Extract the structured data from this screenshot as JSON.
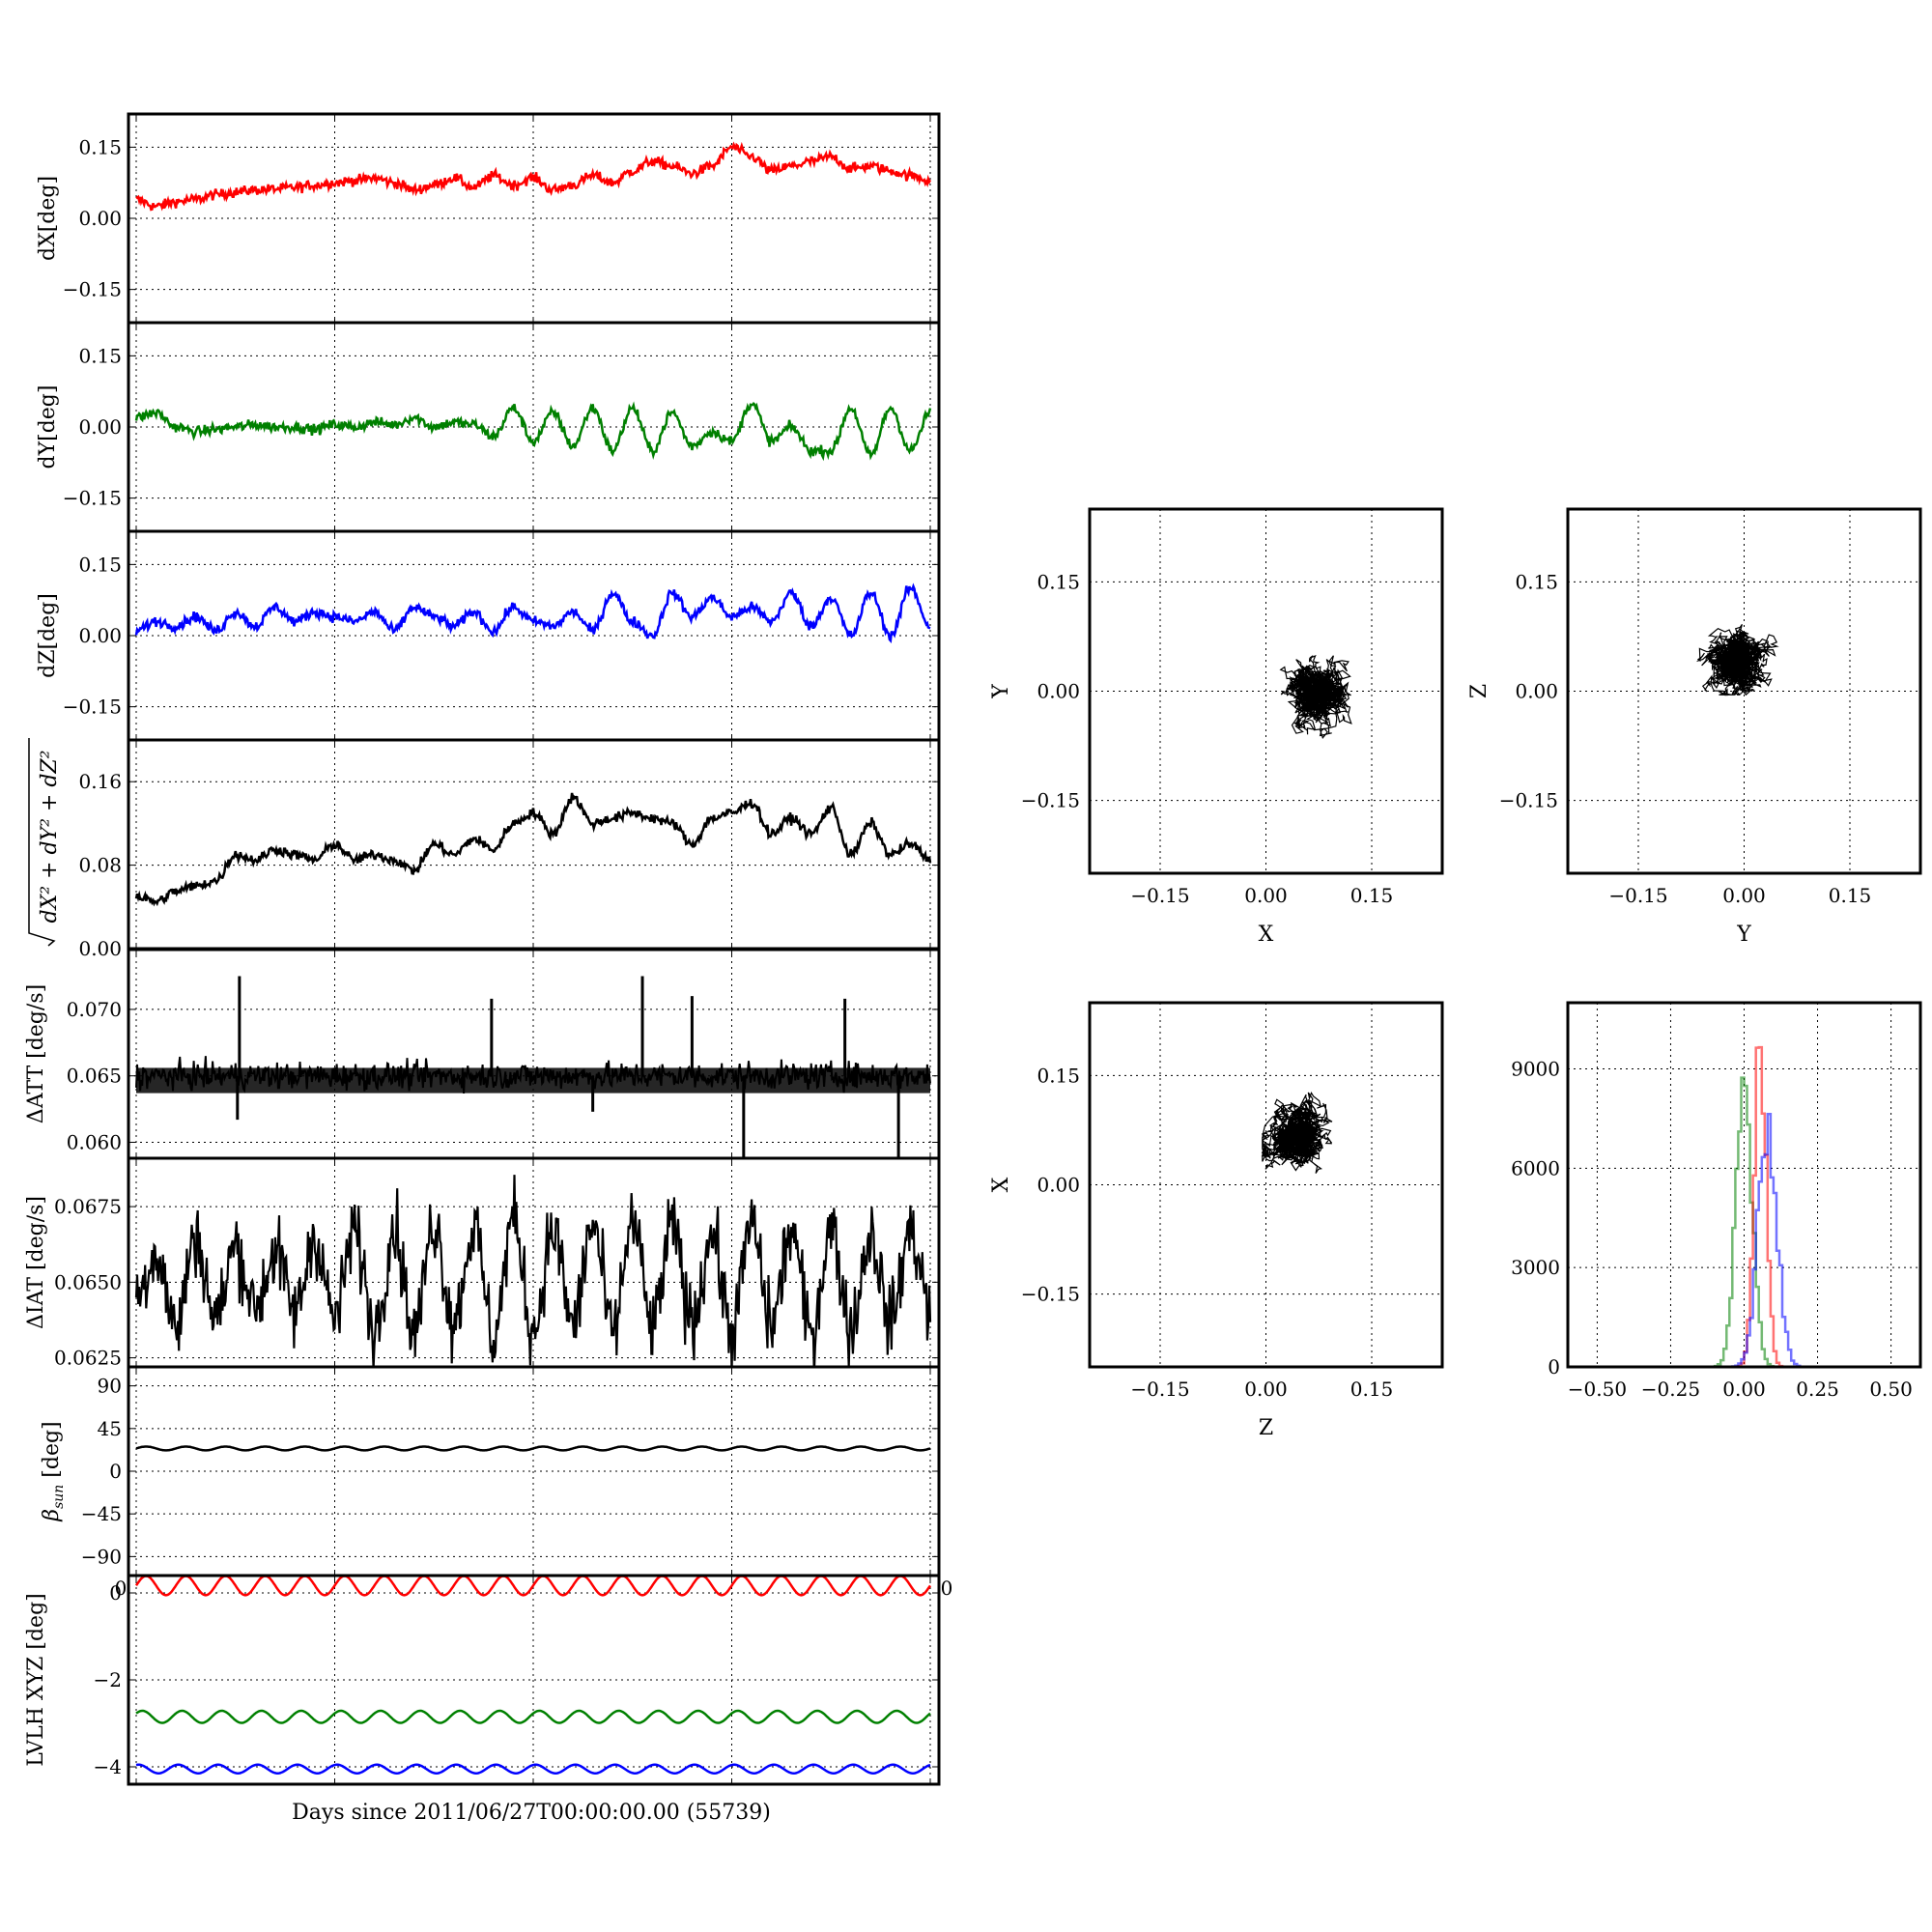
{
  "figure": {
    "xlabel": "Days since 2011/06/27T00:00:00.00 (55739)",
    "colors": {
      "red": "#ff0000",
      "green": "#008000",
      "blue": "#0000ff",
      "black": "#000000"
    }
  },
  "chart_data": [
    {
      "id": "dx",
      "type": "line",
      "ylabel": "dX[deg]",
      "ylim": [
        -0.22,
        0.22
      ],
      "yticks": [
        "0.15",
        "0.00",
        "-0.15"
      ],
      "ytick_values": [
        0.15,
        0.0,
        -0.15
      ],
      "x": [
        0,
        1,
        2,
        3,
        4,
        5,
        6,
        7,
        8,
        9,
        10,
        11,
        12,
        13,
        14,
        15,
        16,
        17,
        18,
        19,
        20,
        21,
        22,
        23,
        24,
        25,
        26,
        27,
        28,
        29,
        30,
        31,
        32,
        33,
        34,
        35,
        36,
        37,
        38,
        39,
        40
      ],
      "series": [
        {
          "color": "#ff0000",
          "values": [
            0.04,
            0.025,
            0.035,
            0.04,
            0.05,
            0.055,
            0.06,
            0.062,
            0.065,
            0.07,
            0.075,
            0.08,
            0.085,
            0.075,
            0.06,
            0.07,
            0.085,
            0.065,
            0.09,
            0.07,
            0.085,
            0.06,
            0.07,
            0.09,
            0.075,
            0.1,
            0.12,
            0.11,
            0.095,
            0.11,
            0.15,
            0.13,
            0.1,
            0.11,
            0.12,
            0.13,
            0.105,
            0.11,
            0.1,
            0.09,
            0.08
          ]
        }
      ],
      "grid": true
    },
    {
      "id": "dy",
      "type": "line",
      "ylabel": "dY[deg]",
      "ylim": [
        -0.22,
        0.22
      ],
      "yticks": [
        "0.15",
        "0.00",
        "-0.15"
      ],
      "ytick_values": [
        0.15,
        0.0,
        -0.15
      ],
      "x": [
        0,
        1,
        2,
        3,
        4,
        5,
        6,
        7,
        8,
        9,
        10,
        11,
        12,
        13,
        14,
        15,
        16,
        17,
        18,
        19,
        20,
        21,
        22,
        23,
        24,
        25,
        26,
        27,
        28,
        29,
        30,
        31,
        32,
        33,
        34,
        35,
        36,
        37,
        38,
        39,
        40
      ],
      "series": [
        {
          "color": "#008000",
          "values": [
            0.02,
            0.03,
            0.0,
            -0.01,
            -0.005,
            0.0,
            0.005,
            0.0,
            0.0,
            -0.005,
            0.005,
            0.0,
            0.01,
            0.005,
            0.02,
            0.0,
            0.01,
            0.005,
            -0.02,
            0.04,
            -0.03,
            0.03,
            -0.04,
            0.04,
            -0.05,
            0.04,
            -0.05,
            0.03,
            -0.04,
            -0.01,
            -0.03,
            0.05,
            -0.03,
            0.0,
            -0.05,
            -0.05,
            0.04,
            -0.06,
            0.04,
            -0.05,
            0.03
          ]
        }
      ],
      "grid": true
    },
    {
      "id": "dz",
      "type": "line",
      "ylabel": "dZ[deg]",
      "ylim": [
        -0.22,
        0.22
      ],
      "yticks": [
        "0.15",
        "0.00",
        "-0.15"
      ],
      "ytick_values": [
        0.15,
        0.0,
        -0.15
      ],
      "x": [
        0,
        1,
        2,
        3,
        4,
        5,
        6,
        7,
        8,
        9,
        10,
        11,
        12,
        13,
        14,
        15,
        16,
        17,
        18,
        19,
        20,
        21,
        22,
        23,
        24,
        25,
        26,
        27,
        28,
        29,
        30,
        31,
        32,
        33,
        34,
        35,
        36,
        37,
        38,
        39,
        40
      ],
      "series": [
        {
          "color": "#0000ff",
          "values": [
            0.01,
            0.03,
            0.02,
            0.04,
            0.01,
            0.05,
            0.02,
            0.06,
            0.03,
            0.05,
            0.04,
            0.03,
            0.05,
            0.01,
            0.06,
            0.04,
            0.02,
            0.05,
            0.01,
            0.06,
            0.03,
            0.02,
            0.05,
            0.01,
            0.09,
            0.03,
            0.0,
            0.09,
            0.04,
            0.08,
            0.04,
            0.06,
            0.03,
            0.09,
            0.02,
            0.08,
            0.0,
            0.09,
            0.0,
            0.1,
            0.02
          ]
        }
      ],
      "grid": true
    },
    {
      "id": "drms",
      "type": "line",
      "ylabel": "√dX²+dY²+dZ²",
      "ylim": [
        0.0,
        0.2
      ],
      "yticks": [
        "0.16",
        "0.08",
        "0.00"
      ],
      "ytick_values": [
        0.16,
        0.08,
        0.0
      ],
      "x": [
        0,
        1,
        2,
        3,
        4,
        5,
        6,
        7,
        8,
        9,
        10,
        11,
        12,
        13,
        14,
        15,
        16,
        17,
        18,
        19,
        20,
        21,
        22,
        23,
        24,
        25,
        26,
        27,
        28,
        29,
        30,
        31,
        32,
        33,
        34,
        35,
        36,
        37,
        38,
        39,
        40
      ],
      "series": [
        {
          "color": "#000000",
          "values": [
            0.05,
            0.045,
            0.055,
            0.06,
            0.065,
            0.09,
            0.085,
            0.095,
            0.09,
            0.085,
            0.1,
            0.085,
            0.09,
            0.085,
            0.075,
            0.1,
            0.09,
            0.105,
            0.095,
            0.12,
            0.13,
            0.11,
            0.145,
            0.12,
            0.125,
            0.13,
            0.125,
            0.12,
            0.1,
            0.125,
            0.13,
            0.14,
            0.11,
            0.125,
            0.11,
            0.135,
            0.09,
            0.12,
            0.09,
            0.1,
            0.085
          ]
        }
      ],
      "grid": true
    },
    {
      "id": "datt",
      "type": "line",
      "ylabel": "ΔATT [deg/s]",
      "ylim": [
        0.0588,
        0.0745
      ],
      "yticks": [
        "0.070",
        "0.065",
        "0.060"
      ],
      "ytick_values": [
        0.07,
        0.065,
        0.06
      ],
      "baseline": 0.065,
      "band": [
        0.0637,
        0.0656
      ],
      "spikes": [
        {
          "x": 5.2,
          "value": 0.0725
        },
        {
          "x": 17.9,
          "value": 0.0708
        },
        {
          "x": 25.5,
          "value": 0.0725
        },
        {
          "x": 28.0,
          "value": 0.071
        },
        {
          "x": 35.7,
          "value": 0.0708
        },
        {
          "x": 5.1,
          "value": 0.0617
        },
        {
          "x": 23.0,
          "value": 0.0623
        },
        {
          "x": 30.6,
          "value": 0.0588
        },
        {
          "x": 38.4,
          "value": 0.0588
        }
      ],
      "series": [
        {
          "color": "#000000"
        }
      ],
      "grid": true
    },
    {
      "id": "diat",
      "type": "line",
      "ylabel": "ΔIAT [deg/s]",
      "ylim": [
        0.0622,
        0.0691
      ],
      "yticks": [
        "0.0675",
        "0.0650",
        "0.0625"
      ],
      "ytick_values": [
        0.0675,
        0.065,
        0.0625
      ],
      "x": [
        0,
        1,
        2,
        3,
        4,
        5,
        6,
        7,
        8,
        9,
        10,
        11,
        12,
        13,
        14,
        15,
        16,
        17,
        18,
        19,
        20,
        21,
        22,
        23,
        24,
        25,
        26,
        27,
        28,
        29,
        30,
        31,
        32,
        33,
        34,
        35,
        36,
        37,
        38,
        39,
        40
      ],
      "series": [
        {
          "color": "#000000",
          "values": [
            0.0645,
            0.066,
            0.0635,
            0.0665,
            0.0638,
            0.0662,
            0.0642,
            0.066,
            0.064,
            0.0665,
            0.0638,
            0.0667,
            0.0635,
            0.0668,
            0.0633,
            0.067,
            0.0637,
            0.0668,
            0.0632,
            0.0671,
            0.0634,
            0.0667,
            0.0636,
            0.0669,
            0.0633,
            0.067,
            0.0635,
            0.0668,
            0.0637,
            0.0666,
            0.0634,
            0.0669,
            0.0636,
            0.0667,
            0.0633,
            0.0668,
            0.0635,
            0.0666,
            0.0637,
            0.0667,
            0.0642
          ]
        }
      ],
      "grid": true
    },
    {
      "id": "beta",
      "type": "line",
      "ylabel": "β_sun [deg]",
      "ylabel_main": "β",
      "ylabel_sub": "sun",
      "ylabel_unit": "[deg]",
      "ylim": [
        -110,
        110
      ],
      "yticks": [
        "90",
        "45",
        "0",
        "-45",
        "-90"
      ],
      "ytick_values": [
        90,
        45,
        0,
        -45,
        -90
      ],
      "mean": 24,
      "amplitude": 2,
      "periods": 20,
      "series": [
        {
          "color": "#000000"
        }
      ],
      "grid": true
    },
    {
      "id": "lvlh",
      "type": "line",
      "ylabel": "LVLH XYZ [deg]",
      "ylim": [
        -4.4,
        0.4
      ],
      "yticks": [
        "0",
        "-2",
        "-4"
      ],
      "ytick_values": [
        0,
        -2,
        -4
      ],
      "xticks_bottom": [
        "0",
        "0"
      ],
      "periods": 20,
      "series": [
        {
          "color": "#ff0000",
          "mean": 0.17,
          "amplitude": 0.22
        },
        {
          "color": "#008000",
          "mean": -2.85,
          "amplitude": 0.14
        },
        {
          "color": "#0000ff",
          "mean": -4.05,
          "amplitude": 0.1
        }
      ],
      "grid": true
    },
    {
      "id": "scatter_xy",
      "type": "scatter",
      "xlabel": "X",
      "ylabel": "Y",
      "xlim": [
        -0.25,
        0.25
      ],
      "ylim": [
        -0.25,
        0.25
      ],
      "xticks": [
        "-0.15",
        "0.00",
        "0.15"
      ],
      "yticks": [
        "0.15",
        "0.00",
        "-0.15"
      ],
      "tick_values": [
        -0.15,
        0.0,
        0.15
      ],
      "center": [
        0.08,
        0.0
      ],
      "spread": [
        0.035,
        0.035
      ],
      "grid": true
    },
    {
      "id": "scatter_yz",
      "type": "scatter",
      "xlabel": "Y",
      "ylabel": "Z",
      "xlim": [
        -0.25,
        0.25
      ],
      "ylim": [
        -0.25,
        0.25
      ],
      "xticks": [
        "-0.15",
        "0.00",
        "0.15"
      ],
      "yticks": [
        "0.15",
        "0.00",
        "-0.15"
      ],
      "tick_values": [
        -0.15,
        0.0,
        0.15
      ],
      "center": [
        -0.005,
        0.045
      ],
      "spread": [
        0.03,
        0.025
      ],
      "grid": true
    },
    {
      "id": "scatter_zx",
      "type": "scatter",
      "xlabel": "Z",
      "ylabel": "X",
      "xlim": [
        -0.25,
        0.25
      ],
      "ylim": [
        -0.25,
        0.25
      ],
      "xticks": [
        "-0.15",
        "0.00",
        "0.15"
      ],
      "yticks": [
        "0.15",
        "0.00",
        "-0.15"
      ],
      "tick_values": [
        -0.15,
        0.0,
        0.15
      ],
      "center": [
        0.045,
        0.075
      ],
      "spread": [
        0.025,
        0.03
      ],
      "grid": true
    },
    {
      "id": "hist",
      "type": "histogram",
      "xlim": [
        -0.6,
        0.6
      ],
      "ylim": [
        0,
        11000
      ],
      "xticks": [
        "-0.50",
        "-0.25",
        "0.00",
        "0.25",
        "0.50"
      ],
      "xtick_values": [
        -0.5,
        -0.25,
        0.0,
        0.25,
        0.5
      ],
      "yticks": [
        "9000",
        "6000",
        "3000",
        "0"
      ],
      "ytick_values": [
        9000,
        6000,
        3000,
        0
      ],
      "series": [
        {
          "color": "#008000",
          "center": -0.005,
          "width": 0.028,
          "peak": 8200
        },
        {
          "color": "#ff0000",
          "center": 0.05,
          "width": 0.02,
          "peak": 10200
        },
        {
          "color": "#0000ff",
          "center": 0.075,
          "width": 0.032,
          "peak": 7500
        }
      ],
      "grid": true
    }
  ]
}
